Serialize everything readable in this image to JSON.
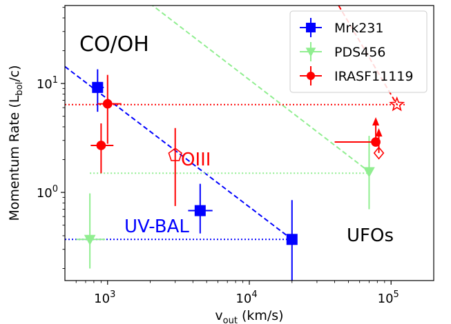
{
  "chart_data": {
    "type": "scatter",
    "title": "",
    "xlabel": "v_out (km/s)",
    "ylabel": "Momentum Rate (L_bol/c)",
    "xscale": "log",
    "yscale": "log",
    "xlim": [
      500,
      200000
    ],
    "ylim": [
      0.155,
      52
    ],
    "grid": false,
    "legend_position": "top-right",
    "x_ticks": [
      {
        "value": 1000,
        "base": "10",
        "exp": "3"
      },
      {
        "value": 10000,
        "base": "10",
        "exp": "4"
      },
      {
        "value": 100000,
        "base": "10",
        "exp": "5"
      }
    ],
    "y_ticks": [
      {
        "value": 1,
        "base": "10",
        "exp": "0"
      },
      {
        "value": 10,
        "base": "10",
        "exp": "1"
      }
    ],
    "legend": [
      {
        "name": "Mrk231",
        "color": "#0000ff",
        "marker": "square"
      },
      {
        "name": "PDS456",
        "color": "#90ee90",
        "marker": "triangle-down"
      },
      {
        "name": "IRASF11119",
        "color": "#ff0000",
        "marker": "circle"
      }
    ],
    "annotations": [
      {
        "text": "CO/OH",
        "color": "#000000"
      },
      {
        "text": "OIII",
        "color": "#ff0000"
      },
      {
        "text": "UV-BAL",
        "color": "#0000ff"
      },
      {
        "text": "UFOs",
        "color": "#000000"
      }
    ],
    "series": [
      {
        "name": "Mrk231",
        "color": "#0000ff",
        "marker": "square",
        "points": [
          {
            "x": 850,
            "y": 9.2,
            "x_err": [
              770,
              940
            ],
            "y_err": [
              5.5,
              13.5
            ]
          },
          {
            "x": 4500,
            "y": 0.68,
            "x_err": [
              3700,
              5500
            ],
            "y_err": [
              0.42,
              1.2
            ]
          },
          {
            "x": 20000,
            "y": 0.37,
            "x_err": [
              18500,
              21500
            ],
            "y_err": [
              0.15,
              0.85
            ]
          }
        ]
      },
      {
        "name": "PDS456",
        "color": "#90ee90",
        "marker": "triangle-down",
        "points": [
          {
            "x": 750,
            "y": 0.37,
            "x_err": [
              600,
              960
            ],
            "y_err": [
              0.2,
              0.98
            ]
          },
          {
            "x": 70000,
            "y": 1.55,
            "x_err": [
              67000,
              73000
            ],
            "y_err": [
              0.7,
              3.3
            ]
          }
        ]
      },
      {
        "name": "IRASF11119",
        "color": "#ff0000",
        "marker": "circle",
        "points": [
          {
            "x": 1000,
            "y": 6.5,
            "x_err": [
              850,
              1250
            ],
            "y_err": [
              2.8,
              12
            ]
          },
          {
            "x": 900,
            "y": 2.7,
            "x_err": [
              760,
              1100
            ],
            "y_err": [
              1.5,
              4.3
            ]
          },
          {
            "x": 78000,
            "y": 2.9,
            "x_err": [
              40000,
              80000
            ],
            "y_err": [
              2.7,
              3.05
            ],
            "lower_limit": true
          }
        ]
      }
    ],
    "open_markers": [
      {
        "x": 3000,
        "y": 2.2,
        "color": "#ff0000",
        "marker": "pentagon",
        "y_err": [
          0.75,
          3.9
        ]
      },
      {
        "x": 110000,
        "y": 6.4,
        "color": "#ff0000",
        "marker": "star"
      },
      {
        "x": 82000,
        "y": 2.3,
        "color": "#ff0000",
        "marker": "diamond",
        "lower_limit": true
      }
    ],
    "reference_lines": [
      {
        "color": "#0000ff",
        "style": "dashed",
        "x": [
          500,
          20000
        ],
        "y": [
          14.3,
          0.37
        ]
      },
      {
        "color": "#90ee90",
        "style": "dashed",
        "x": [
          1800,
          70000
        ],
        "y": [
          60,
          1.55
        ]
      },
      {
        "color": "#ff0000",
        "style": "dashed",
        "x": [
          40000,
          110000
        ],
        "y": [
          60,
          6.4
        ]
      },
      {
        "color": "#ff0000",
        "style": "dotted",
        "x": [
          500,
          125000
        ],
        "y": [
          6.4,
          6.4
        ]
      },
      {
        "color": "#90ee90",
        "style": "dotted",
        "x": [
          750,
          70000
        ],
        "y": [
          1.5,
          1.5
        ]
      },
      {
        "color": "#0000ff",
        "style": "dotted",
        "x": [
          500,
          20000
        ],
        "y": [
          0.37,
          0.37
        ]
      }
    ]
  }
}
